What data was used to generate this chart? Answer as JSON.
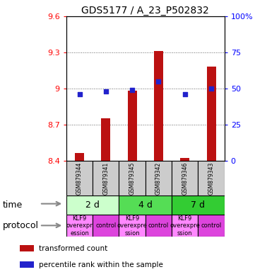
{
  "title": "GDS5177 / A_23_P502832",
  "samples": [
    "GSM879344",
    "GSM879341",
    "GSM879345",
    "GSM879342",
    "GSM879346",
    "GSM879343"
  ],
  "transformed_counts": [
    8.46,
    8.75,
    8.98,
    9.31,
    8.42,
    9.18
  ],
  "percentile_ranks": [
    46,
    48,
    49,
    55,
    46,
    50
  ],
  "ylim_left": [
    8.4,
    9.6
  ],
  "ylim_right": [
    0,
    100
  ],
  "yticks_left": [
    8.4,
    8.7,
    9.0,
    9.3,
    9.6
  ],
  "yticks_right": [
    0,
    25,
    50,
    75,
    100
  ],
  "ytick_labels_left": [
    "8.4",
    "8.7",
    "9",
    "9.3",
    "9.6"
  ],
  "ytick_labels_right": [
    "0",
    "25",
    "50",
    "75",
    "100%"
  ],
  "time_groups": [
    {
      "label": "2 d",
      "start": 0,
      "end": 2,
      "color": "#ccffcc"
    },
    {
      "label": "4 d",
      "start": 2,
      "end": 4,
      "color": "#55dd55"
    },
    {
      "label": "7 d",
      "start": 4,
      "end": 6,
      "color": "#33cc33"
    }
  ],
  "protocol_groups": [
    {
      "label": "KLF9\noverexpr\nession",
      "start": 0,
      "end": 1,
      "color": "#ff88ff"
    },
    {
      "label": "control",
      "start": 1,
      "end": 2,
      "color": "#dd44dd"
    },
    {
      "label": "KLF9\noverexpre\nssion",
      "start": 2,
      "end": 3,
      "color": "#ff88ff"
    },
    {
      "label": "control",
      "start": 3,
      "end": 4,
      "color": "#dd44dd"
    },
    {
      "label": "KLF9\noverexpre\nssion",
      "start": 4,
      "end": 5,
      "color": "#ff88ff"
    },
    {
      "label": "control",
      "start": 5,
      "end": 6,
      "color": "#dd44dd"
    }
  ],
  "bar_color": "#bb1111",
  "dot_color": "#2222cc",
  "bar_width": 0.35,
  "dot_size": 22,
  "sample_box_color": "#cccccc",
  "grid_color": "#666666",
  "title_fontsize": 10,
  "tick_fontsize": 8,
  "sample_fontsize": 5.5,
  "time_fontsize": 9,
  "proto_fontsize": 6,
  "legend_fontsize": 7.5,
  "row_label_fontsize": 9
}
